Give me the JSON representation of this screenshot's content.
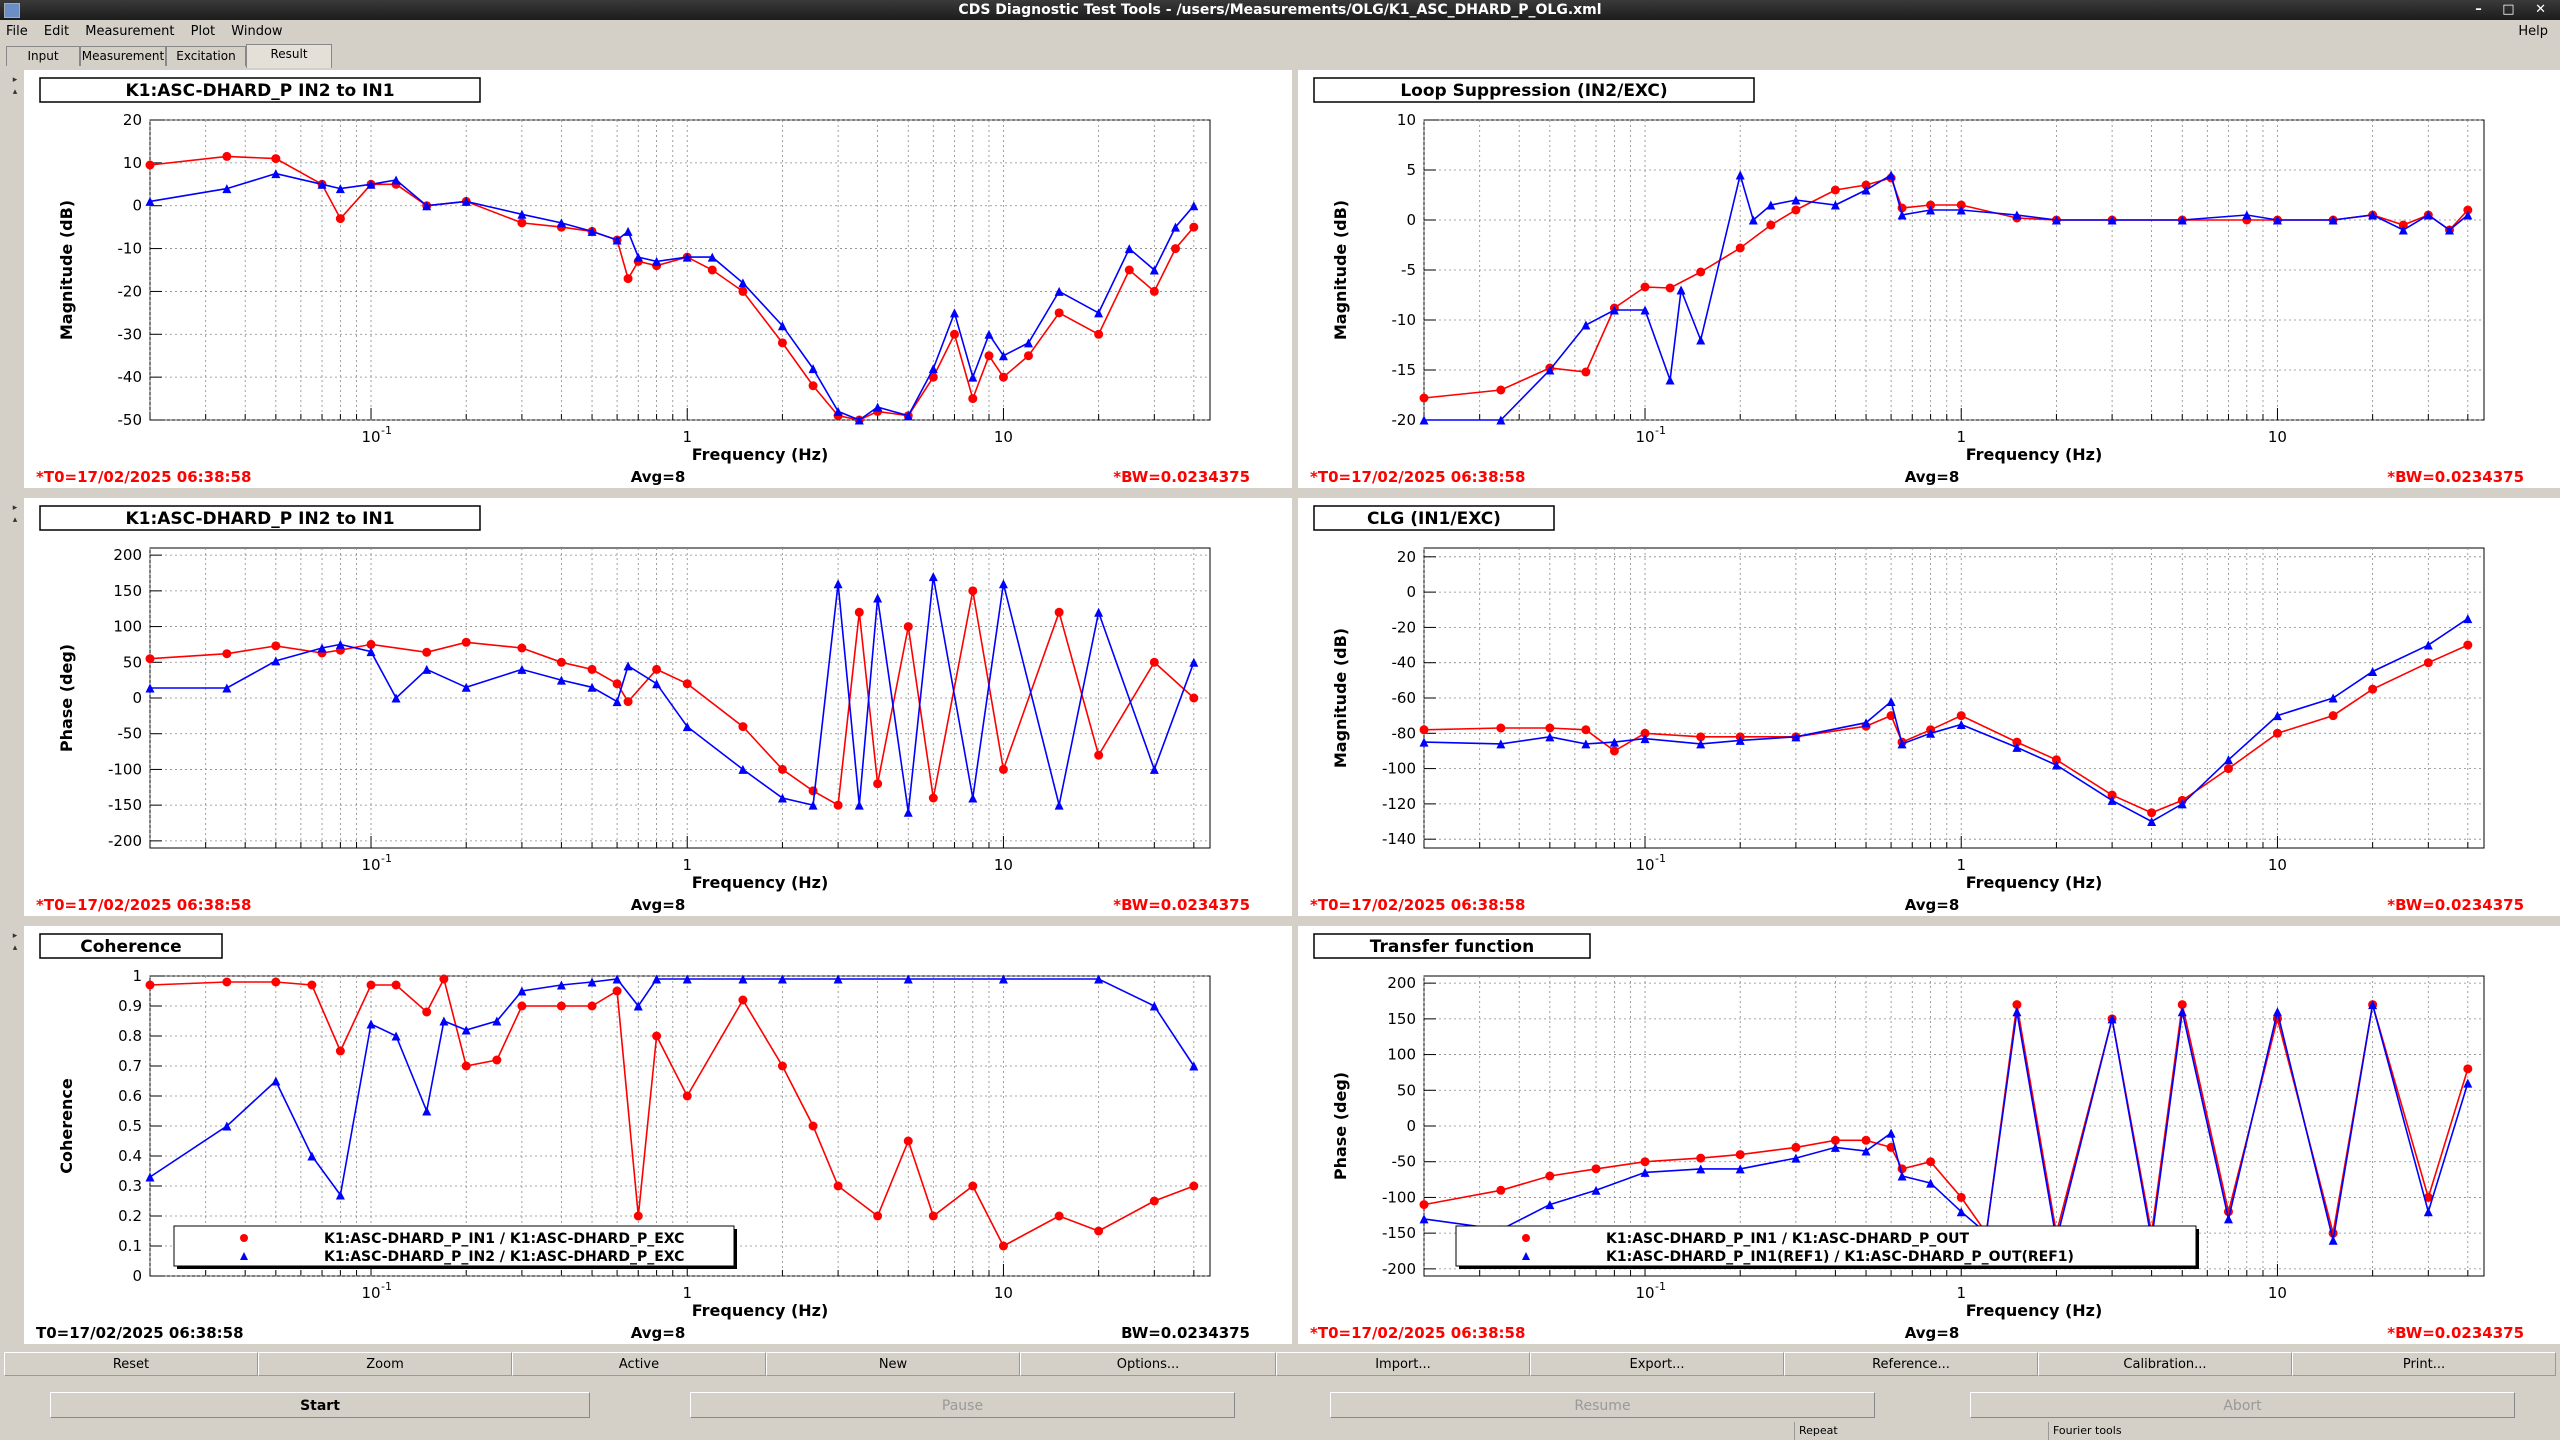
{
  "window": {
    "title": "CDS Diagnostic Test Tools - /users/Measurements/OLG/K1_ASC_DHARD_P_OLG.xml"
  },
  "menu": {
    "file": "File",
    "edit": "Edit",
    "measurement": "Measurement",
    "plot": "Plot",
    "window": "Window",
    "help": "Help"
  },
  "tabs": [
    "Input",
    "Measurement",
    "Excitation",
    "Result"
  ],
  "panels": [
    {
      "title": "K1:ASC-DHARD_P IN2 to IN1",
      "ylabel": "Magnitude (dB)",
      "xlabel": "Frequency (Hz)",
      "t0": "*T0=17/02/2025 06:38:58",
      "avg": "Avg=8",
      "bw": "*BW=0.0234375"
    },
    {
      "title": "Loop Suppression (IN2/EXC)",
      "ylabel": "Magnitude (dB)",
      "xlabel": "Frequency (Hz)",
      "t0": "*T0=17/02/2025 06:38:58",
      "avg": "Avg=8",
      "bw": "*BW=0.0234375"
    },
    {
      "title": "K1:ASC-DHARD_P IN2 to IN1",
      "ylabel": "Phase (deg)",
      "xlabel": "Frequency (Hz)",
      "t0": "*T0=17/02/2025 06:38:58",
      "avg": "Avg=8",
      "bw": "*BW=0.0234375"
    },
    {
      "title": "CLG (IN1/EXC)",
      "ylabel": "Magnitude (dB)",
      "xlabel": "Frequency (Hz)",
      "t0": "*T0=17/02/2025 06:38:58",
      "avg": "Avg=8",
      "bw": "*BW=0.0234375"
    },
    {
      "title": "Coherence",
      "ylabel": "Coherence",
      "xlabel": "Frequency (Hz)",
      "t0": "T0=17/02/2025 06:38:58",
      "avg": "Avg=8",
      "bw": "BW=0.0234375",
      "legend": [
        "K1:ASC-DHARD_P_IN1 / K1:ASC-DHARD_P_EXC",
        "K1:ASC-DHARD_P_IN2 / K1:ASC-DHARD_P_EXC"
      ]
    },
    {
      "title": "Transfer function",
      "ylabel": "Phase (deg)",
      "xlabel": "Frequency (Hz)",
      "t0": "*T0=17/02/2025 06:38:58",
      "avg": "Avg=8",
      "bw": "*BW=0.0234375",
      "legend": [
        "K1:ASC-DHARD_P_IN1 / K1:ASC-DHARD_P_OUT",
        "K1:ASC-DHARD_P_IN1(REF1) / K1:ASC-DHARD_P_OUT(REF1)"
      ]
    }
  ],
  "bottom_buttons": [
    "Reset",
    "Zoom",
    "Active",
    "New",
    "Options...",
    "Import...",
    "Export...",
    "Reference...",
    "Calibration...",
    "Print..."
  ],
  "actions": {
    "start": "Start",
    "pause": "Pause",
    "resume": "Resume",
    "abort": "Abort"
  },
  "status": {
    "repeat": "Repeat",
    "fourier": "Fourier tools"
  },
  "colors": {
    "series_red": "#ff0000",
    "series_blue": "#0000ff",
    "annotation_red": "#ff0000"
  },
  "chart_data": [
    {
      "type": "line",
      "title": "K1:ASC-DHARD_P IN2 to IN1",
      "xlabel": "Frequency (Hz)",
      "ylabel": "Magnitude (dB)",
      "xscale": "log",
      "xlim": [
        0.02,
        45
      ],
      "ylim": [
        -50,
        20
      ],
      "yticks": [
        20,
        10,
        0,
        -10,
        -20,
        -30,
        -40,
        -50
      ],
      "xticks": [
        "10^-1",
        "1",
        "10"
      ],
      "grid": true,
      "series": [
        {
          "color": "#ff0000",
          "marker": "circle",
          "x": [
            0.02,
            0.035,
            0.05,
            0.07,
            0.08,
            0.1,
            0.12,
            0.15,
            0.2,
            0.3,
            0.4,
            0.5,
            0.6,
            0.65,
            0.7,
            0.8,
            1,
            1.2,
            1.5,
            2,
            2.5,
            3,
            3.5,
            4,
            5,
            6,
            7,
            8,
            9,
            10,
            12,
            15,
            20,
            25,
            30,
            35,
            40
          ],
          "y": [
            9.5,
            11.5,
            11,
            5,
            -3,
            5,
            5,
            0,
            1,
            -4,
            -5,
            -6,
            -8,
            -17,
            -13,
            -14,
            -12,
            -15,
            -20,
            -32,
            -42,
            -49,
            -50,
            -48,
            -49,
            -40,
            -30,
            -45,
            -35,
            -40,
            -35,
            -25,
            -30,
            -15,
            -20,
            -10,
            -5
          ]
        },
        {
          "color": "#0000ff",
          "marker": "triangle",
          "x": [
            0.02,
            0.035,
            0.05,
            0.07,
            0.08,
            0.1,
            0.12,
            0.15,
            0.2,
            0.3,
            0.4,
            0.5,
            0.6,
            0.65,
            0.7,
            0.8,
            1,
            1.2,
            1.5,
            2,
            2.5,
            3,
            3.5,
            4,
            5,
            6,
            7,
            8,
            9,
            10,
            12,
            15,
            20,
            25,
            30,
            35,
            40
          ],
          "y": [
            1,
            4,
            7.5,
            5,
            4,
            5,
            6,
            0,
            1,
            -2,
            -4,
            -6,
            -8,
            -6,
            -12,
            -13,
            -12,
            -12,
            -18,
            -28,
            -38,
            -48,
            -50,
            -47,
            -49,
            -38,
            -25,
            -40,
            -30,
            -35,
            -32,
            -20,
            -25,
            -10,
            -15,
            -5,
            0
          ]
        }
      ]
    },
    {
      "type": "line",
      "title": "Loop Suppression (IN2/EXC)",
      "xlabel": "Frequency (Hz)",
      "ylabel": "Magnitude (dB)",
      "xscale": "log",
      "xlim": [
        0.02,
        45
      ],
      "ylim": [
        -20,
        10
      ],
      "yticks": [
        10,
        5,
        0,
        -5,
        -10,
        -15,
        -20
      ],
      "xticks": [
        "10^-1",
        "1",
        "10"
      ],
      "grid": true,
      "series": [
        {
          "color": "#ff0000",
          "marker": "circle",
          "x": [
            0.02,
            0.035,
            0.05,
            0.065,
            0.08,
            0.1,
            0.12,
            0.15,
            0.2,
            0.25,
            0.3,
            0.4,
            0.5,
            0.6,
            0.65,
            0.8,
            1,
            1.5,
            2,
            3,
            5,
            8,
            10,
            15,
            20,
            25,
            30,
            35,
            40
          ],
          "y": [
            -17.8,
            -17,
            -14.8,
            -15.2,
            -8.8,
            -6.7,
            -6.8,
            -5.2,
            -2.8,
            -0.5,
            1,
            3,
            3.5,
            4.2,
            1.2,
            1.5,
            1.5,
            0.2,
            0,
            0,
            0,
            0,
            0,
            0,
            0.5,
            -0.5,
            0.5,
            -1,
            1
          ]
        },
        {
          "color": "#0000ff",
          "marker": "triangle",
          "x": [
            0.02,
            0.035,
            0.05,
            0.065,
            0.08,
            0.1,
            0.12,
            0.13,
            0.15,
            0.2,
            0.22,
            0.25,
            0.3,
            0.4,
            0.5,
            0.6,
            0.65,
            0.8,
            1,
            1.5,
            2,
            3,
            5,
            8,
            10,
            15,
            20,
            25,
            30,
            35,
            40
          ],
          "y": [
            -20,
            -20,
            -15,
            -10.5,
            -9,
            -9,
            -16,
            -7,
            -12,
            4.5,
            0,
            1.5,
            2,
            1.5,
            3,
            4.5,
            0.5,
            1,
            1,
            0.5,
            0,
            0,
            0,
            0.5,
            0,
            0,
            0.5,
            -1,
            0.5,
            -1,
            0.5
          ]
        }
      ]
    },
    {
      "type": "line",
      "title": "K1:ASC-DHARD_P IN2 to IN1",
      "xlabel": "Frequency (Hz)",
      "ylabel": "Phase (deg)",
      "xscale": "log",
      "xlim": [
        0.02,
        45
      ],
      "ylim": [
        -210,
        210
      ],
      "yticks": [
        200,
        150,
        100,
        50,
        0,
        -50,
        -100,
        -150,
        -200
      ],
      "xticks": [
        "10^-1",
        "1",
        "10"
      ],
      "grid": true,
      "series": [
        {
          "color": "#ff0000",
          "marker": "circle",
          "x": [
            0.02,
            0.035,
            0.05,
            0.07,
            0.08,
            0.1,
            0.15,
            0.2,
            0.3,
            0.4,
            0.5,
            0.6,
            0.65,
            0.8,
            1,
            1.5,
            2,
            2.5,
            3,
            3.5,
            4,
            5,
            6,
            8,
            10,
            15,
            20,
            30,
            40
          ],
          "y": [
            55,
            62,
            73,
            63,
            67,
            75,
            64,
            78,
            70,
            50,
            40,
            20,
            -5,
            40,
            20,
            -40,
            -100,
            -130,
            -150,
            120,
            -120,
            100,
            -140,
            150,
            -100,
            120,
            -80,
            50,
            0
          ]
        },
        {
          "color": "#0000ff",
          "marker": "triangle",
          "x": [
            0.02,
            0.035,
            0.05,
            0.07,
            0.08,
            0.1,
            0.12,
            0.15,
            0.2,
            0.3,
            0.4,
            0.5,
            0.6,
            0.65,
            0.8,
            1,
            1.5,
            2,
            2.5,
            3,
            3.5,
            4,
            5,
            6,
            8,
            10,
            15,
            20,
            30,
            40
          ],
          "y": [
            14,
            14,
            52,
            70,
            75,
            65,
            0,
            40,
            15,
            40,
            25,
            15,
            -5,
            45,
            20,
            -40,
            -100,
            -140,
            -150,
            160,
            -150,
            140,
            -160,
            170,
            -140,
            160,
            -150,
            120,
            -100,
            50
          ]
        }
      ]
    },
    {
      "type": "line",
      "title": "CLG (IN1/EXC)",
      "xlabel": "Frequency (Hz)",
      "ylabel": "Magnitude (dB)",
      "xscale": "log",
      "xlim": [
        0.02,
        45
      ],
      "ylim": [
        -145,
        25
      ],
      "yticks": [
        20,
        0,
        -20,
        -40,
        -60,
        -80,
        -100,
        -120,
        -140
      ],
      "xticks": [
        "10^-1",
        "1",
        "10"
      ],
      "grid": true,
      "series": [
        {
          "color": "#ff0000",
          "marker": "circle",
          "x": [
            0.02,
            0.035,
            0.05,
            0.065,
            0.08,
            0.1,
            0.15,
            0.2,
            0.3,
            0.5,
            0.6,
            0.65,
            0.8,
            1,
            1.5,
            2,
            3,
            4,
            5,
            7,
            10,
            15,
            20,
            30,
            40
          ],
          "y": [
            -78,
            -77,
            -77,
            -78,
            -90,
            -80,
            -82,
            -82,
            -82,
            -76,
            -70,
            -85,
            -78,
            -70,
            -85,
            -95,
            -115,
            -125,
            -118,
            -100,
            -80,
            -70,
            -55,
            -40,
            -30
          ]
        },
        {
          "color": "#0000ff",
          "marker": "triangle",
          "x": [
            0.02,
            0.035,
            0.05,
            0.065,
            0.08,
            0.1,
            0.15,
            0.2,
            0.3,
            0.5,
            0.6,
            0.65,
            0.8,
            1,
            1.5,
            2,
            3,
            4,
            5,
            7,
            10,
            15,
            20,
            30,
            40
          ],
          "y": [
            -85,
            -86,
            -82,
            -86,
            -85,
            -83,
            -86,
            -84,
            -82,
            -74,
            -62,
            -86,
            -80,
            -75,
            -88,
            -98,
            -118,
            -130,
            -120,
            -95,
            -70,
            -60,
            -45,
            -30,
            -15
          ]
        }
      ]
    },
    {
      "type": "line",
      "title": "Coherence",
      "xlabel": "Frequency (Hz)",
      "ylabel": "Coherence",
      "xscale": "log",
      "xlim": [
        0.02,
        45
      ],
      "ylim": [
        0,
        1
      ],
      "yticks": [
        1,
        0.9,
        0.8,
        0.7,
        0.6,
        0.5,
        0.4,
        0.3,
        0.2,
        0.1,
        0
      ],
      "xticks": [
        "10^-1",
        "1",
        "10"
      ],
      "grid": true,
      "legend_position": "bottom-left",
      "series": [
        {
          "name": "K1:ASC-DHARD_P_IN1 / K1:ASC-DHARD_P_EXC",
          "color": "#ff0000",
          "marker": "circle",
          "x": [
            0.02,
            0.035,
            0.05,
            0.065,
            0.08,
            0.1,
            0.12,
            0.15,
            0.17,
            0.2,
            0.25,
            0.3,
            0.4,
            0.5,
            0.6,
            0.7,
            0.8,
            1,
            1.5,
            2,
            2.5,
            3,
            4,
            5,
            6,
            8,
            10,
            15,
            20,
            30,
            40
          ],
          "y": [
            0.97,
            0.98,
            0.98,
            0.97,
            0.75,
            0.97,
            0.97,
            0.88,
            0.99,
            0.7,
            0.72,
            0.9,
            0.9,
            0.9,
            0.95,
            0.2,
            0.8,
            0.6,
            0.92,
            0.7,
            0.5,
            0.3,
            0.2,
            0.45,
            0.2,
            0.3,
            0.1,
            0.2,
            0.15,
            0.25,
            0.3
          ]
        },
        {
          "name": "K1:ASC-DHARD_P_IN2 / K1:ASC-DHARD_P_EXC",
          "color": "#0000ff",
          "marker": "triangle",
          "x": [
            0.02,
            0.035,
            0.05,
            0.065,
            0.08,
            0.1,
            0.12,
            0.15,
            0.17,
            0.2,
            0.25,
            0.3,
            0.4,
            0.5,
            0.6,
            0.7,
            0.8,
            1,
            1.5,
            2,
            3,
            5,
            10,
            20,
            30,
            40
          ],
          "y": [
            0.33,
            0.5,
            0.65,
            0.4,
            0.27,
            0.84,
            0.8,
            0.55,
            0.85,
            0.82,
            0.85,
            0.95,
            0.97,
            0.98,
            0.99,
            0.9,
            0.99,
            0.99,
            0.99,
            0.99,
            0.99,
            0.99,
            0.99,
            0.99,
            0.9,
            0.7
          ]
        }
      ]
    },
    {
      "type": "line",
      "title": "Transfer function",
      "xlabel": "Frequency (Hz)",
      "ylabel": "Phase (deg)",
      "xscale": "log",
      "xlim": [
        0.02,
        45
      ],
      "ylim": [
        -210,
        210
      ],
      "yticks": [
        200,
        150,
        100,
        50,
        0,
        -50,
        -100,
        -150,
        -200
      ],
      "xticks": [
        "10^-1",
        "1",
        "10"
      ],
      "grid": true,
      "legend_position": "bottom-left",
      "series": [
        {
          "name": "K1:ASC-DHARD_P_IN1 / K1:ASC-DHARD_P_OUT",
          "color": "#ff0000",
          "marker": "circle",
          "x": [
            0.02,
            0.035,
            0.05,
            0.07,
            0.1,
            0.15,
            0.2,
            0.3,
            0.4,
            0.5,
            0.6,
            0.65,
            0.8,
            1,
            1.2,
            1.5,
            2,
            3,
            4,
            5,
            7,
            10,
            15,
            20,
            30,
            40
          ],
          "y": [
            -110,
            -90,
            -70,
            -60,
            -50,
            -45,
            -40,
            -30,
            -20,
            -20,
            -30,
            -60,
            -50,
            -100,
            -150,
            170,
            -150,
            150,
            -150,
            170,
            -120,
            150,
            -150,
            170,
            -100,
            80
          ]
        },
        {
          "name": "K1:ASC-DHARD_P_IN1(REF1) / K1:ASC-DHARD_P_OUT(REF1)",
          "color": "#0000ff",
          "marker": "triangle",
          "x": [
            0.02,
            0.035,
            0.05,
            0.07,
            0.1,
            0.15,
            0.2,
            0.3,
            0.4,
            0.5,
            0.6,
            0.65,
            0.8,
            1,
            1.2,
            1.5,
            2,
            3,
            4,
            5,
            7,
            10,
            15,
            20,
            30,
            40
          ],
          "y": [
            -130,
            -145,
            -110,
            -90,
            -65,
            -60,
            -60,
            -45,
            -30,
            -35,
            -10,
            -70,
            -80,
            -120,
            -150,
            160,
            -160,
            150,
            -160,
            160,
            -130,
            160,
            -160,
            170,
            -120,
            60
          ]
        }
      ]
    }
  ]
}
